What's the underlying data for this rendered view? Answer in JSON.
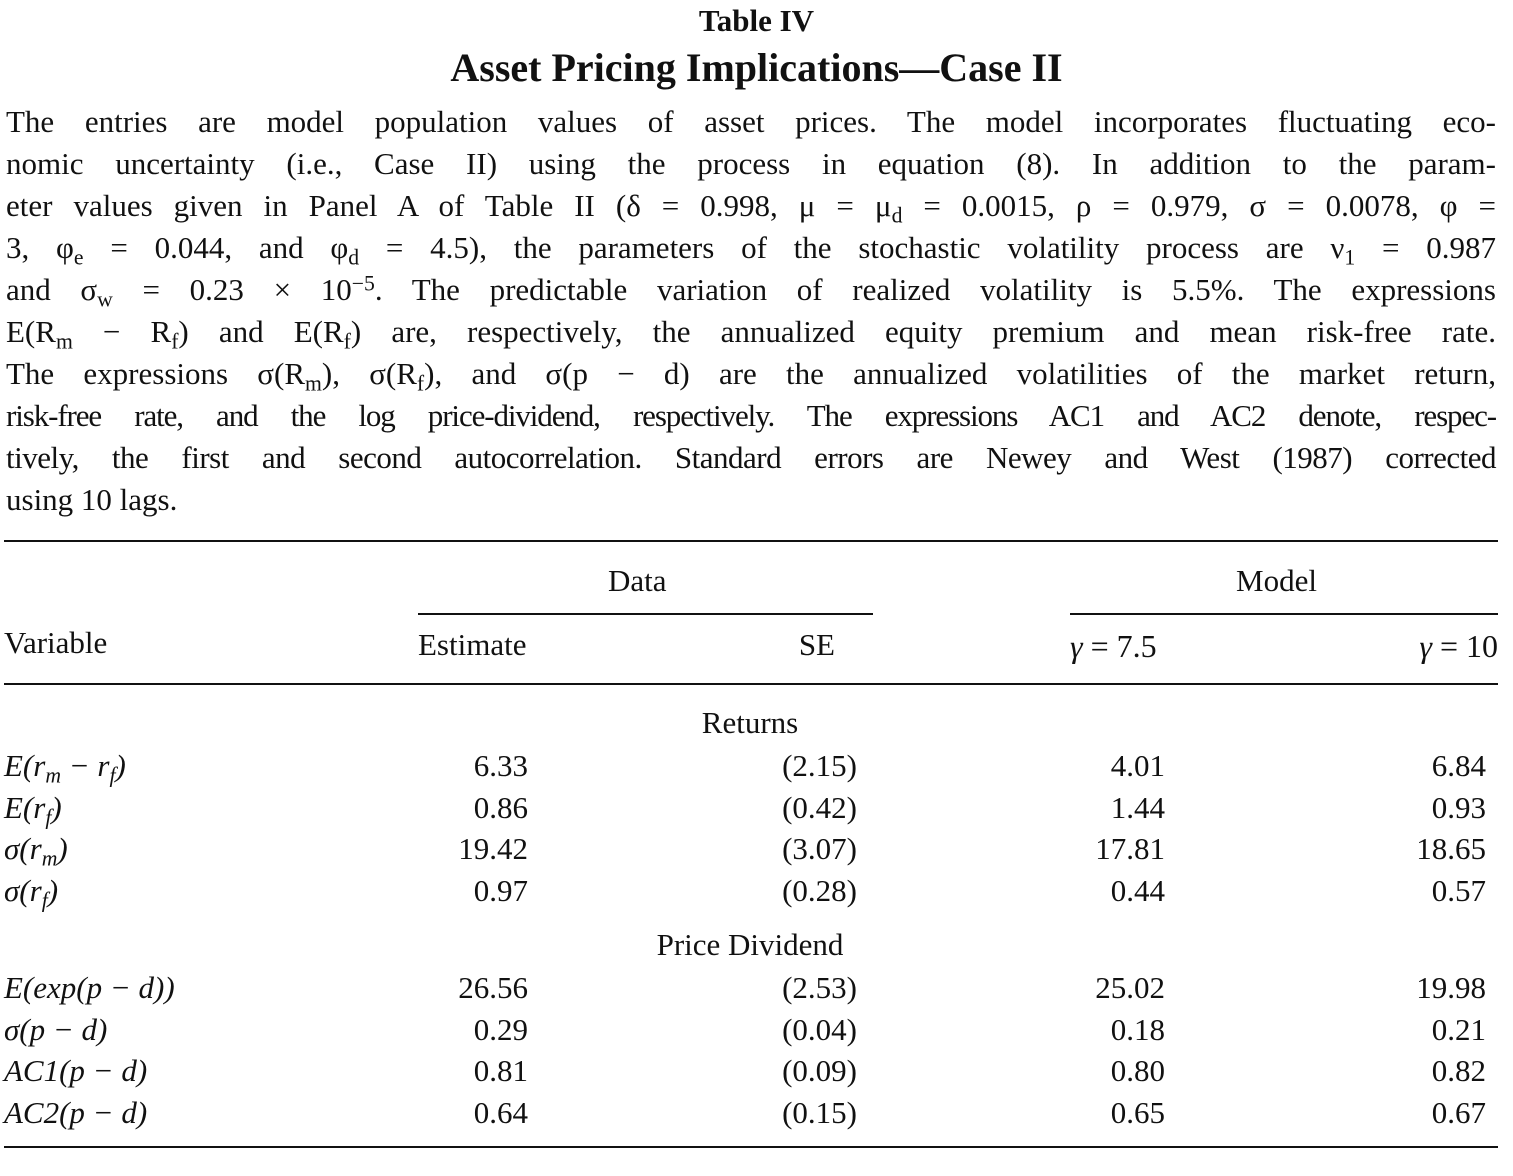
{
  "table_label": "Table IV",
  "table_title": "Asset Pricing Implications—Case II",
  "caption_lines": [
    "The entries are model population values of asset prices. The model incorporates fluctuating eco-",
    "nomic uncertainty (i.e., Case II) using the process in equation (8). In addition to the param-",
    "eter values given in Panel A of Table II (δ = 0.998, μ = μ_d = 0.0015, ρ = 0.979, σ = 0.0078, φ =",
    "3, φ_e = 0.044, and φ_d = 4.5), the parameters of the stochastic volatility process are ν_1 = 0.987",
    "and σ_w = 0.23 × 10^−5. The predictable variation of realized volatility is 5.5%. The expressions",
    "E(R_m − R_f) and E(R_f) are, respectively, the annualized equity premium and mean risk-free rate.",
    "The expressions σ(R_m), σ(R_f), and σ(p − d) are the annualized volatilities of the market return,",
    "risk-free rate, and the log price-dividend, respectively. The expressions AC1 and AC2 denote, respec-",
    "tively, the first and second autocorrelation. Standard errors are Newey and West (1987) corrected",
    "using 10 lags."
  ],
  "header": {
    "group_data": "Data",
    "group_model": "Model",
    "col_variable": "Variable",
    "col_estimate": "Estimate",
    "col_se": "SE",
    "col_model_1": "γ = 7.5",
    "col_model_2": "γ = 10"
  },
  "sections": [
    {
      "label": "Returns",
      "rows": [
        {
          "variable": "E(r_m − r_f)",
          "estimate": "6.33",
          "se": "(2.15)",
          "model_1": "4.01",
          "model_2": "6.84"
        },
        {
          "variable": "E(r_f)",
          "estimate": "0.86",
          "se": "(0.42)",
          "model_1": "1.44",
          "model_2": "0.93"
        },
        {
          "variable": "σ(r_m)",
          "estimate": "19.42",
          "se": "(3.07)",
          "model_1": "17.81",
          "model_2": "18.65"
        },
        {
          "variable": "σ(r_f)",
          "estimate": "0.97",
          "se": "(0.28)",
          "model_1": "0.44",
          "model_2": "0.57"
        }
      ]
    },
    {
      "label": "Price Dividend",
      "rows": [
        {
          "variable": "E(exp(p − d))",
          "estimate": "26.56",
          "se": "(2.53)",
          "model_1": "25.02",
          "model_2": "19.98"
        },
        {
          "variable": "σ(p − d)",
          "estimate": "0.29",
          "se": "(0.04)",
          "model_1": "0.18",
          "model_2": "0.21"
        },
        {
          "variable": "AC1(p − d)",
          "estimate": "0.81",
          "se": "(0.09)",
          "model_1": "0.80",
          "model_2": "0.82"
        },
        {
          "variable": "AC2(p − d)",
          "estimate": "0.64",
          "se": "(0.15)",
          "model_1": "0.65",
          "model_2": "0.67"
        }
      ]
    }
  ]
}
